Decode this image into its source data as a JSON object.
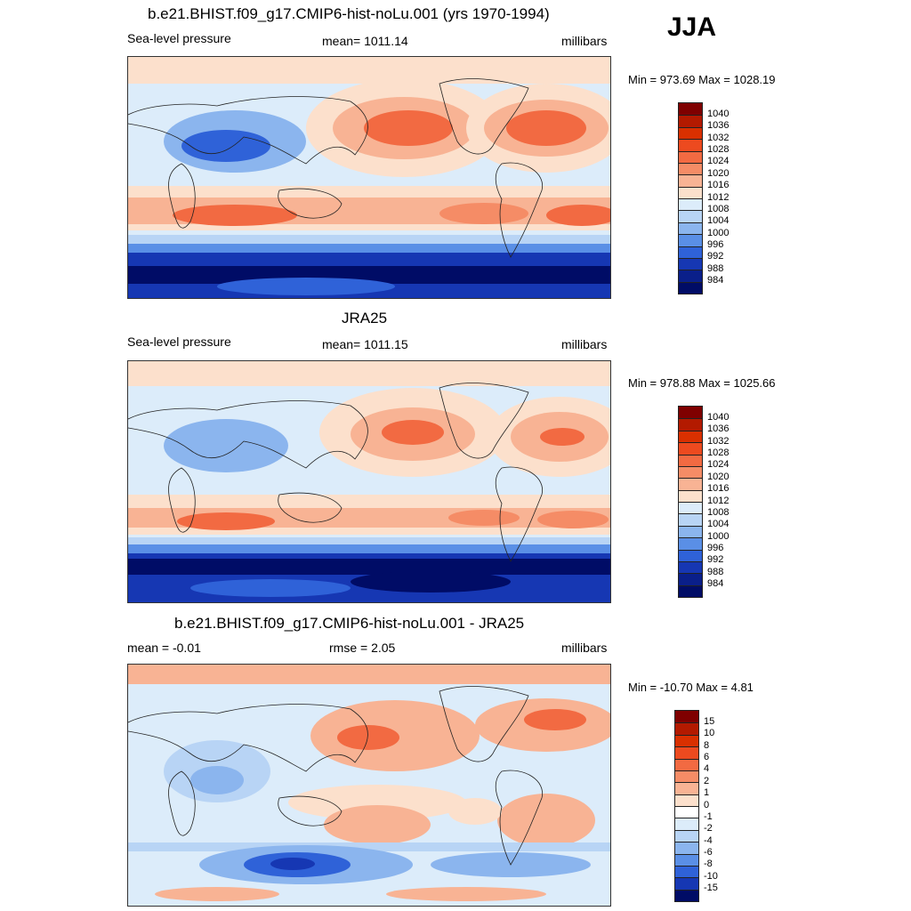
{
  "season": "JJA",
  "panels": [
    {
      "title": "b.e21.BHIST.f09_g17.CMIP6-hist-noLu.001 (yrs 1970-1994)",
      "left_label": "Sea-level pressure",
      "center_label": "mean= 1011.14",
      "right_label": "millibars",
      "minmax": "Min = 973.69 Max = 1028.19",
      "colorbar_labels": [
        "1040",
        "1036",
        "1032",
        "1028",
        "1024",
        "1020",
        "1016",
        "1012",
        "1008",
        "1004",
        "1000",
        "996",
        "992",
        "988",
        "984"
      ]
    },
    {
      "title": "JRA25",
      "left_label": "Sea-level pressure",
      "center_label": "mean= 1011.15",
      "right_label": "millibars",
      "minmax": "Min = 978.88 Max = 1025.66",
      "colorbar_labels": [
        "1040",
        "1036",
        "1032",
        "1028",
        "1024",
        "1020",
        "1016",
        "1012",
        "1008",
        "1004",
        "1000",
        "996",
        "992",
        "988",
        "984"
      ]
    },
    {
      "title": "b.e21.BHIST.f09_g17.CMIP6-hist-noLu.001 - JRA25",
      "left_label": "mean =  -0.01",
      "center_label": "rmse =   2.05",
      "right_label": "millibars",
      "minmax": "Min = -10.70 Max =   4.81",
      "colorbar_labels": [
        "15",
        "10",
        "8",
        "6",
        "4",
        "2",
        "1",
        "0",
        "-1",
        "-2",
        "-4",
        "-6",
        "-8",
        "-10",
        "-15"
      ]
    }
  ],
  "colors": {
    "abs_scale": [
      "#7f0000",
      "#b31a00",
      "#d93000",
      "#ed4a1f",
      "#f26a42",
      "#f58c66",
      "#f8b394",
      "#fce0cc",
      "#dcecfa",
      "#b8d4f5",
      "#8bb5ee",
      "#5a8fe6",
      "#2f62d8",
      "#1637b3",
      "#0a1f8a",
      "#000c66"
    ],
    "diff_scale": [
      "#7f0000",
      "#b31a00",
      "#d93000",
      "#ed4a1f",
      "#f26a42",
      "#f58c66",
      "#f8b394",
      "#fce0cc",
      "#ffffff",
      "#dcecfa",
      "#b8d4f5",
      "#8bb5ee",
      "#5a8fe6",
      "#2f62d8",
      "#1637b3",
      "#000c66"
    ]
  }
}
